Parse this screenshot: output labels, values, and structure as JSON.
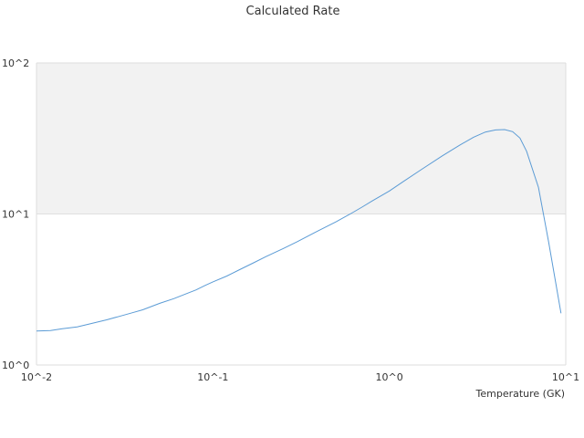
{
  "chart_data": {
    "type": "line",
    "title": "Calculated Rate",
    "xlabel": "Temperature (GK)",
    "ylabel": "",
    "x_scale": "log",
    "y_scale": "log",
    "xlim": [
      0.01,
      10
    ],
    "ylim": [
      1,
      100
    ],
    "x_ticks": [
      "10^-2",
      "10^-1",
      "10^0",
      "10^1"
    ],
    "y_ticks": [
      "10^0",
      "10^1",
      "10^2"
    ],
    "grid": false,
    "legend": "none",
    "band_color": "#f2f2f2",
    "line_color": "#5b9bd5",
    "series": [
      {
        "x": [
          0.01,
          0.012,
          0.014,
          0.017,
          0.02,
          0.025,
          0.03,
          0.035,
          0.04,
          0.05,
          0.06,
          0.07,
          0.08,
          0.09,
          0.1,
          0.12,
          0.14,
          0.17,
          0.2,
          0.25,
          0.3,
          0.4,
          0.5,
          0.6,
          0.7,
          0.8,
          1.0,
          1.2,
          1.5,
          2.0,
          2.5,
          3.0,
          3.5,
          4.0,
          4.5,
          5.0,
          5.5,
          6.0,
          7.0,
          8.0,
          9.4
        ],
        "y": [
          1.68,
          1.69,
          1.74,
          1.79,
          1.87,
          1.99,
          2.11,
          2.22,
          2.32,
          2.56,
          2.75,
          2.95,
          3.14,
          3.36,
          3.55,
          3.88,
          4.25,
          4.75,
          5.22,
          5.9,
          6.55,
          7.8,
          8.9,
          10.0,
          11.1,
          12.2,
          14.2,
          16.4,
          19.5,
          24.3,
          28.5,
          32.2,
          34.9,
          36.0,
          36.2,
          35.1,
          31.8,
          26.0,
          15.0,
          6.5,
          2.2
        ]
      }
    ]
  }
}
